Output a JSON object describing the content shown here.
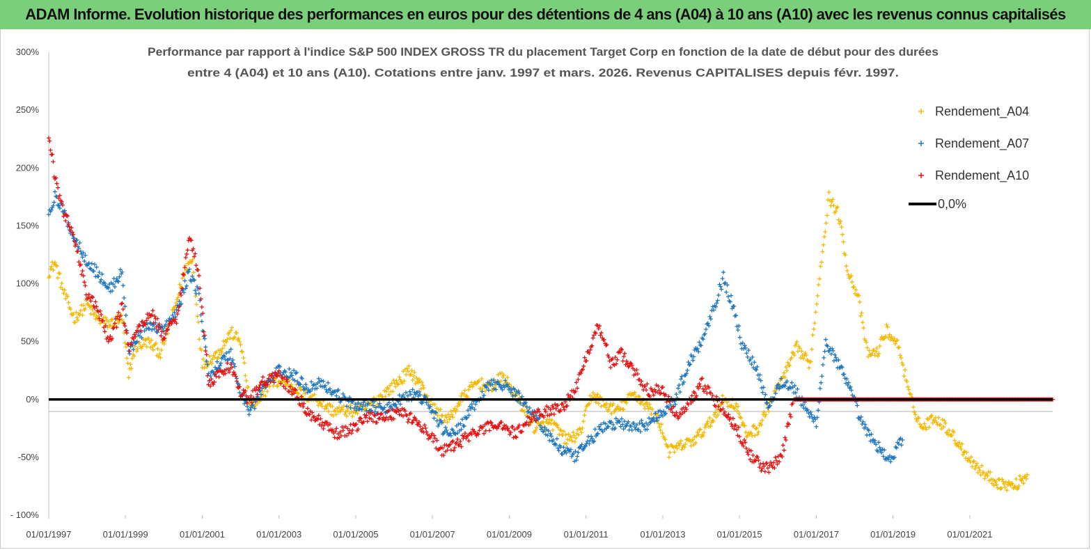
{
  "header": {
    "title": "ADAM Informe. Evolution historique des performances en euros pour des détentions de 4 ans (A04) à 10 ans (A10) avec les revenus connus capitalisés"
  },
  "colors": {
    "banner": "#7ccf7a",
    "A04": "#f5b800",
    "A07": "#1f77c0",
    "A10": "#e81010",
    "zero_line": "#000000"
  },
  "chart_data": {
    "type": "scatter",
    "title_lines": [
      "Performance par rapport à l'indice S&P 500 INDEX GROSS TR  du placement Target Corp en fonction de la date de début pour des durées",
      "entre 4 (A04) et 10 ans (A10). Cotations entre janv. 1997 et mars. 2026. Revenus CAPITALISES depuis févr. 1997."
    ],
    "x_range": [
      "1997-01-01",
      "2023-03-01"
    ],
    "ylim": [
      -100,
      300
    ],
    "y_ticks": [
      -100,
      -50,
      0,
      50,
      100,
      150,
      200,
      250,
      300
    ],
    "y_tick_labels": [
      "- 100%",
      "-50%",
      "0%",
      "50%",
      "100%",
      "150%",
      "200%",
      "250%",
      "300%"
    ],
    "x_ticks": [
      "1997-01-01",
      "1999-01-01",
      "2001-01-01",
      "2003-01-01",
      "2005-01-01",
      "2007-01-01",
      "2009-01-01",
      "2011-01-01",
      "2013-01-01",
      "2015-01-01",
      "2017-01-01",
      "2019-01-01",
      "2021-01-01"
    ],
    "x_tick_labels": [
      "01/01/1997",
      "01/01/1999",
      "01/01/2001",
      "01/01/2003",
      "01/01/2005",
      "01/01/2007",
      "01/01/2009",
      "01/01/2011",
      "01/01/2013",
      "01/01/2015",
      "01/01/2017",
      "01/01/2019",
      "01/01/2021"
    ],
    "legend_position": "top-right",
    "grid": false,
    "series": [
      {
        "name": "Rendement_A04",
        "color": "#f5b800",
        "marker": "+",
        "points": [
          [
            "1997-01-01",
            110
          ],
          [
            "1997-03-01",
            118
          ],
          [
            "1997-06-01",
            90
          ],
          [
            "1997-09-01",
            70
          ],
          [
            "1998-01-01",
            82
          ],
          [
            "1998-04-01",
            70
          ],
          [
            "1998-08-01",
            65
          ],
          [
            "1998-12-01",
            70
          ],
          [
            "1999-02-01",
            20
          ],
          [
            "1999-04-01",
            45
          ],
          [
            "1999-08-01",
            50
          ],
          [
            "1999-12-01",
            40
          ],
          [
            "2000-04-01",
            75
          ],
          [
            "2000-08-01",
            115
          ],
          [
            "2000-10-01",
            120
          ],
          [
            "2001-01-01",
            30
          ],
          [
            "2001-06-01",
            40
          ],
          [
            "2001-10-01",
            58
          ],
          [
            "2002-01-01",
            50
          ],
          [
            "2002-04-01",
            -5
          ],
          [
            "2002-07-01",
            -3
          ],
          [
            "2002-10-01",
            15
          ],
          [
            "2003-04-01",
            15
          ],
          [
            "2003-08-01",
            5
          ],
          [
            "2004-01-01",
            0
          ],
          [
            "2004-06-01",
            -10
          ],
          [
            "2004-12-01",
            -10
          ],
          [
            "2005-04-01",
            -8
          ],
          [
            "2005-10-01",
            5
          ],
          [
            "2006-02-01",
            15
          ],
          [
            "2006-06-01",
            25
          ],
          [
            "2006-10-01",
            10
          ],
          [
            "2007-02-01",
            -10
          ],
          [
            "2007-06-01",
            -18
          ],
          [
            "2007-10-01",
            0
          ],
          [
            "2008-03-01",
            15
          ],
          [
            "2008-07-01",
            10
          ],
          [
            "2008-11-01",
            20
          ],
          [
            "2009-04-01",
            0
          ],
          [
            "2009-09-01",
            -25
          ],
          [
            "2010-02-01",
            -20
          ],
          [
            "2010-07-01",
            -35
          ],
          [
            "2010-11-01",
            -30
          ],
          [
            "2011-03-01",
            5
          ],
          [
            "2011-07-01",
            -5
          ],
          [
            "2011-11-01",
            -10
          ],
          [
            "2012-04-01",
            5
          ],
          [
            "2012-08-01",
            -5
          ],
          [
            "2012-12-01",
            -20
          ],
          [
            "2013-03-01",
            -45
          ],
          [
            "2013-07-01",
            -40
          ],
          [
            "2013-11-01",
            -35
          ],
          [
            "2014-04-01",
            -20
          ],
          [
            "2014-08-01",
            0
          ],
          [
            "2014-12-01",
            -5
          ],
          [
            "2015-03-01",
            -30
          ],
          [
            "2015-07-01",
            -25
          ],
          [
            "2015-11-01",
            0
          ],
          [
            "2016-03-01",
            20
          ],
          [
            "2016-07-01",
            45
          ],
          [
            "2016-11-01",
            30
          ],
          [
            "2017-03-01",
            130
          ],
          [
            "2017-05-01",
            175
          ],
          [
            "2017-08-01",
            160
          ],
          [
            "2017-11-01",
            110
          ],
          [
            "2018-02-01",
            90
          ],
          [
            "2018-05-01",
            40
          ],
          [
            "2018-08-01",
            40
          ],
          [
            "2018-11-01",
            60
          ],
          [
            "2019-03-01",
            45
          ],
          [
            "2019-06-01",
            5
          ],
          [
            "2019-10-01",
            -25
          ],
          [
            "2020-02-01",
            -15
          ],
          [
            "2020-06-01",
            -25
          ],
          [
            "2020-10-01",
            -40
          ],
          [
            "2021-02-01",
            -55
          ],
          [
            "2021-06-01",
            -65
          ],
          [
            "2021-10-01",
            -72
          ],
          [
            "2022-03-01",
            -75
          ],
          [
            "2022-07-01",
            -65
          ]
        ]
      },
      {
        "name": "Rendement_A07",
        "color": "#1f77c0",
        "marker": "+",
        "points": [
          [
            "1997-01-01",
            160
          ],
          [
            "1997-03-01",
            175
          ],
          [
            "1997-06-01",
            160
          ],
          [
            "1997-09-01",
            140
          ],
          [
            "1998-01-01",
            120
          ],
          [
            "1998-04-01",
            110
          ],
          [
            "1998-08-01",
            95
          ],
          [
            "1998-12-01",
            110
          ],
          [
            "1999-02-01",
            40
          ],
          [
            "1999-05-01",
            55
          ],
          [
            "1999-09-01",
            65
          ],
          [
            "2000-01-01",
            60
          ],
          [
            "2000-05-01",
            75
          ],
          [
            "2000-09-01",
            110
          ],
          [
            "2000-12-01",
            90
          ],
          [
            "2001-03-01",
            20
          ],
          [
            "2001-06-01",
            30
          ],
          [
            "2001-10-01",
            40
          ],
          [
            "2002-01-01",
            5
          ],
          [
            "2002-04-01",
            -10
          ],
          [
            "2002-08-01",
            10
          ],
          [
            "2003-01-01",
            25
          ],
          [
            "2003-06-01",
            20
          ],
          [
            "2003-10-01",
            10
          ],
          [
            "2004-02-01",
            15
          ],
          [
            "2004-07-01",
            5
          ],
          [
            "2004-12-01",
            -5
          ],
          [
            "2005-05-01",
            -5
          ],
          [
            "2005-10-01",
            -10
          ],
          [
            "2006-03-01",
            0
          ],
          [
            "2006-08-01",
            5
          ],
          [
            "2006-12-01",
            -5
          ],
          [
            "2007-04-01",
            -25
          ],
          [
            "2007-08-01",
            -30
          ],
          [
            "2008-01-01",
            -10
          ],
          [
            "2008-06-01",
            10
          ],
          [
            "2008-10-01",
            15
          ],
          [
            "2009-03-01",
            5
          ],
          [
            "2009-08-01",
            -10
          ],
          [
            "2010-01-01",
            -30
          ],
          [
            "2010-06-01",
            -45
          ],
          [
            "2010-10-01",
            -50
          ],
          [
            "2011-02-01",
            -35
          ],
          [
            "2011-06-01",
            -25
          ],
          [
            "2011-11-01",
            -20
          ],
          [
            "2012-04-01",
            -25
          ],
          [
            "2012-09-01",
            -20
          ],
          [
            "2013-01-01",
            -10
          ],
          [
            "2013-05-01",
            0
          ],
          [
            "2013-09-01",
            30
          ],
          [
            "2014-01-01",
            50
          ],
          [
            "2014-05-01",
            80
          ],
          [
            "2014-08-01",
            105
          ],
          [
            "2014-11-01",
            80
          ],
          [
            "2015-02-01",
            45
          ],
          [
            "2015-06-01",
            30
          ],
          [
            "2015-10-01",
            -5
          ],
          [
            "2016-02-01",
            15
          ],
          [
            "2016-06-01",
            10
          ],
          [
            "2016-10-01",
            -10
          ],
          [
            "2017-01-01",
            -20
          ],
          [
            "2017-04-01",
            50
          ],
          [
            "2017-08-01",
            30
          ],
          [
            "2017-12-01",
            5
          ],
          [
            "2018-04-01",
            -25
          ],
          [
            "2018-08-01",
            -40
          ],
          [
            "2018-12-01",
            -52
          ],
          [
            "2019-04-01",
            -35
          ]
        ]
      },
      {
        "name": "Rendement_A10",
        "color": "#e81010",
        "marker": "+",
        "points": [
          [
            "1997-01-01",
            230
          ],
          [
            "1997-03-01",
            190
          ],
          [
            "1997-06-01",
            160
          ],
          [
            "1997-09-01",
            140
          ],
          [
            "1998-01-01",
            90
          ],
          [
            "1998-04-01",
            80
          ],
          [
            "1998-08-01",
            50
          ],
          [
            "1998-12-01",
            80
          ],
          [
            "1999-02-01",
            45
          ],
          [
            "1999-05-01",
            60
          ],
          [
            "1999-09-01",
            75
          ],
          [
            "2000-01-01",
            55
          ],
          [
            "2000-05-01",
            70
          ],
          [
            "2000-09-01",
            140
          ],
          [
            "2000-12-01",
            110
          ],
          [
            "2001-03-01",
            15
          ],
          [
            "2001-06-01",
            20
          ],
          [
            "2001-10-01",
            30
          ],
          [
            "2002-01-01",
            5
          ],
          [
            "2002-04-01",
            0
          ],
          [
            "2002-08-01",
            15
          ],
          [
            "2003-01-01",
            20
          ],
          [
            "2003-06-01",
            5
          ],
          [
            "2003-10-01",
            -10
          ],
          [
            "2004-02-01",
            -20
          ],
          [
            "2004-07-01",
            -30
          ],
          [
            "2004-12-01",
            -25
          ],
          [
            "2005-05-01",
            -15
          ],
          [
            "2005-10-01",
            -15
          ],
          [
            "2006-03-01",
            -10
          ],
          [
            "2006-08-01",
            -20
          ],
          [
            "2006-12-01",
            -30
          ],
          [
            "2007-04-01",
            -45
          ],
          [
            "2007-08-01",
            -40
          ],
          [
            "2008-01-01",
            -30
          ],
          [
            "2008-06-01",
            -25
          ],
          [
            "2008-10-01",
            -20
          ],
          [
            "2009-03-01",
            -30
          ],
          [
            "2009-08-01",
            -15
          ],
          [
            "2010-01-01",
            -10
          ],
          [
            "2010-06-01",
            -5
          ],
          [
            "2010-10-01",
            10
          ],
          [
            "2011-02-01",
            45
          ],
          [
            "2011-05-01",
            65
          ],
          [
            "2011-09-01",
            30
          ],
          [
            "2011-12-01",
            40
          ],
          [
            "2012-04-01",
            25
          ],
          [
            "2012-09-01",
            5
          ],
          [
            "2013-01-01",
            10
          ],
          [
            "2013-05-01",
            -15
          ],
          [
            "2013-09-01",
            -5
          ],
          [
            "2014-01-01",
            15
          ],
          [
            "2014-05-01",
            0
          ],
          [
            "2014-09-01",
            -10
          ],
          [
            "2015-01-01",
            -30
          ],
          [
            "2015-05-01",
            -50
          ],
          [
            "2015-09-01",
            -60
          ],
          [
            "2016-02-01",
            -52
          ],
          [
            "2016-06-01",
            0
          ],
          [
            "2017-06-01",
            0
          ],
          [
            "2018-06-01",
            0
          ],
          [
            "2019-06-01",
            0
          ],
          [
            "2020-06-01",
            0
          ],
          [
            "2021-06-01",
            0
          ],
          [
            "2022-06-01",
            0
          ],
          [
            "2023-03-01",
            0
          ]
        ]
      }
    ],
    "reference_line": {
      "name": "0,0%",
      "value": 0,
      "color": "#000000"
    }
  }
}
